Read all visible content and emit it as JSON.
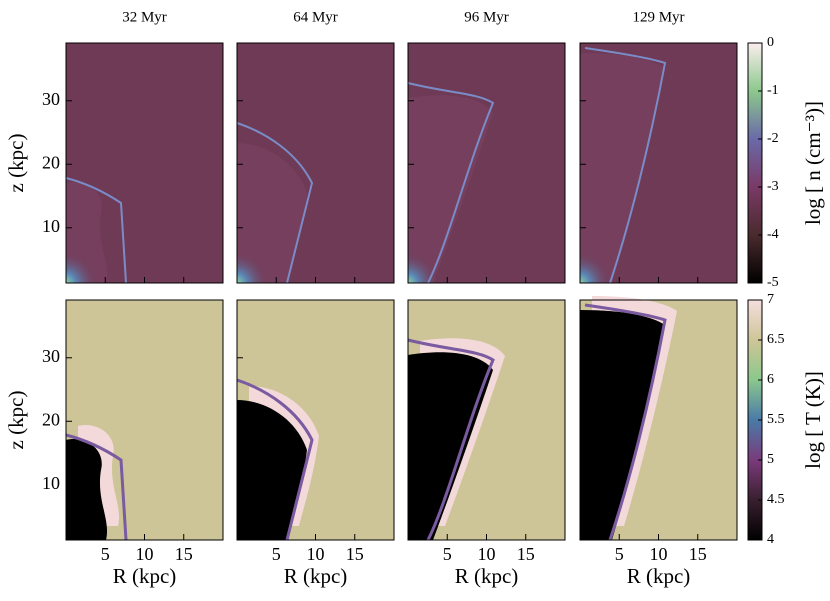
{
  "panel_titles": [
    "32 Myr",
    "64 Myr",
    "96 Myr",
    "129 Myr"
  ],
  "xlabel": "R (kpc)",
  "xlim": [
    0,
    20
  ],
  "xticks": [
    5,
    10,
    15
  ],
  "ylim": [
    1.3,
    39.1
  ],
  "yticks": [
    10,
    20,
    30
  ],
  "rows": [
    {
      "ylabel": "z (kpc)",
      "colorbar": {
        "label": "log [ n (cm⁻³)]",
        "lim": [
          -5,
          0
        ],
        "ticks": [
          0,
          -1,
          -2,
          -3,
          -4,
          -5
        ]
      }
    },
    {
      "ylabel": "z (kpc)",
      "colorbar": {
        "label": "log [ T (K)]",
        "lim": [
          4,
          7
        ],
        "ticks": [
          7,
          6.5,
          6,
          5.5,
          5,
          4.5,
          4
        ]
      }
    }
  ]
}
